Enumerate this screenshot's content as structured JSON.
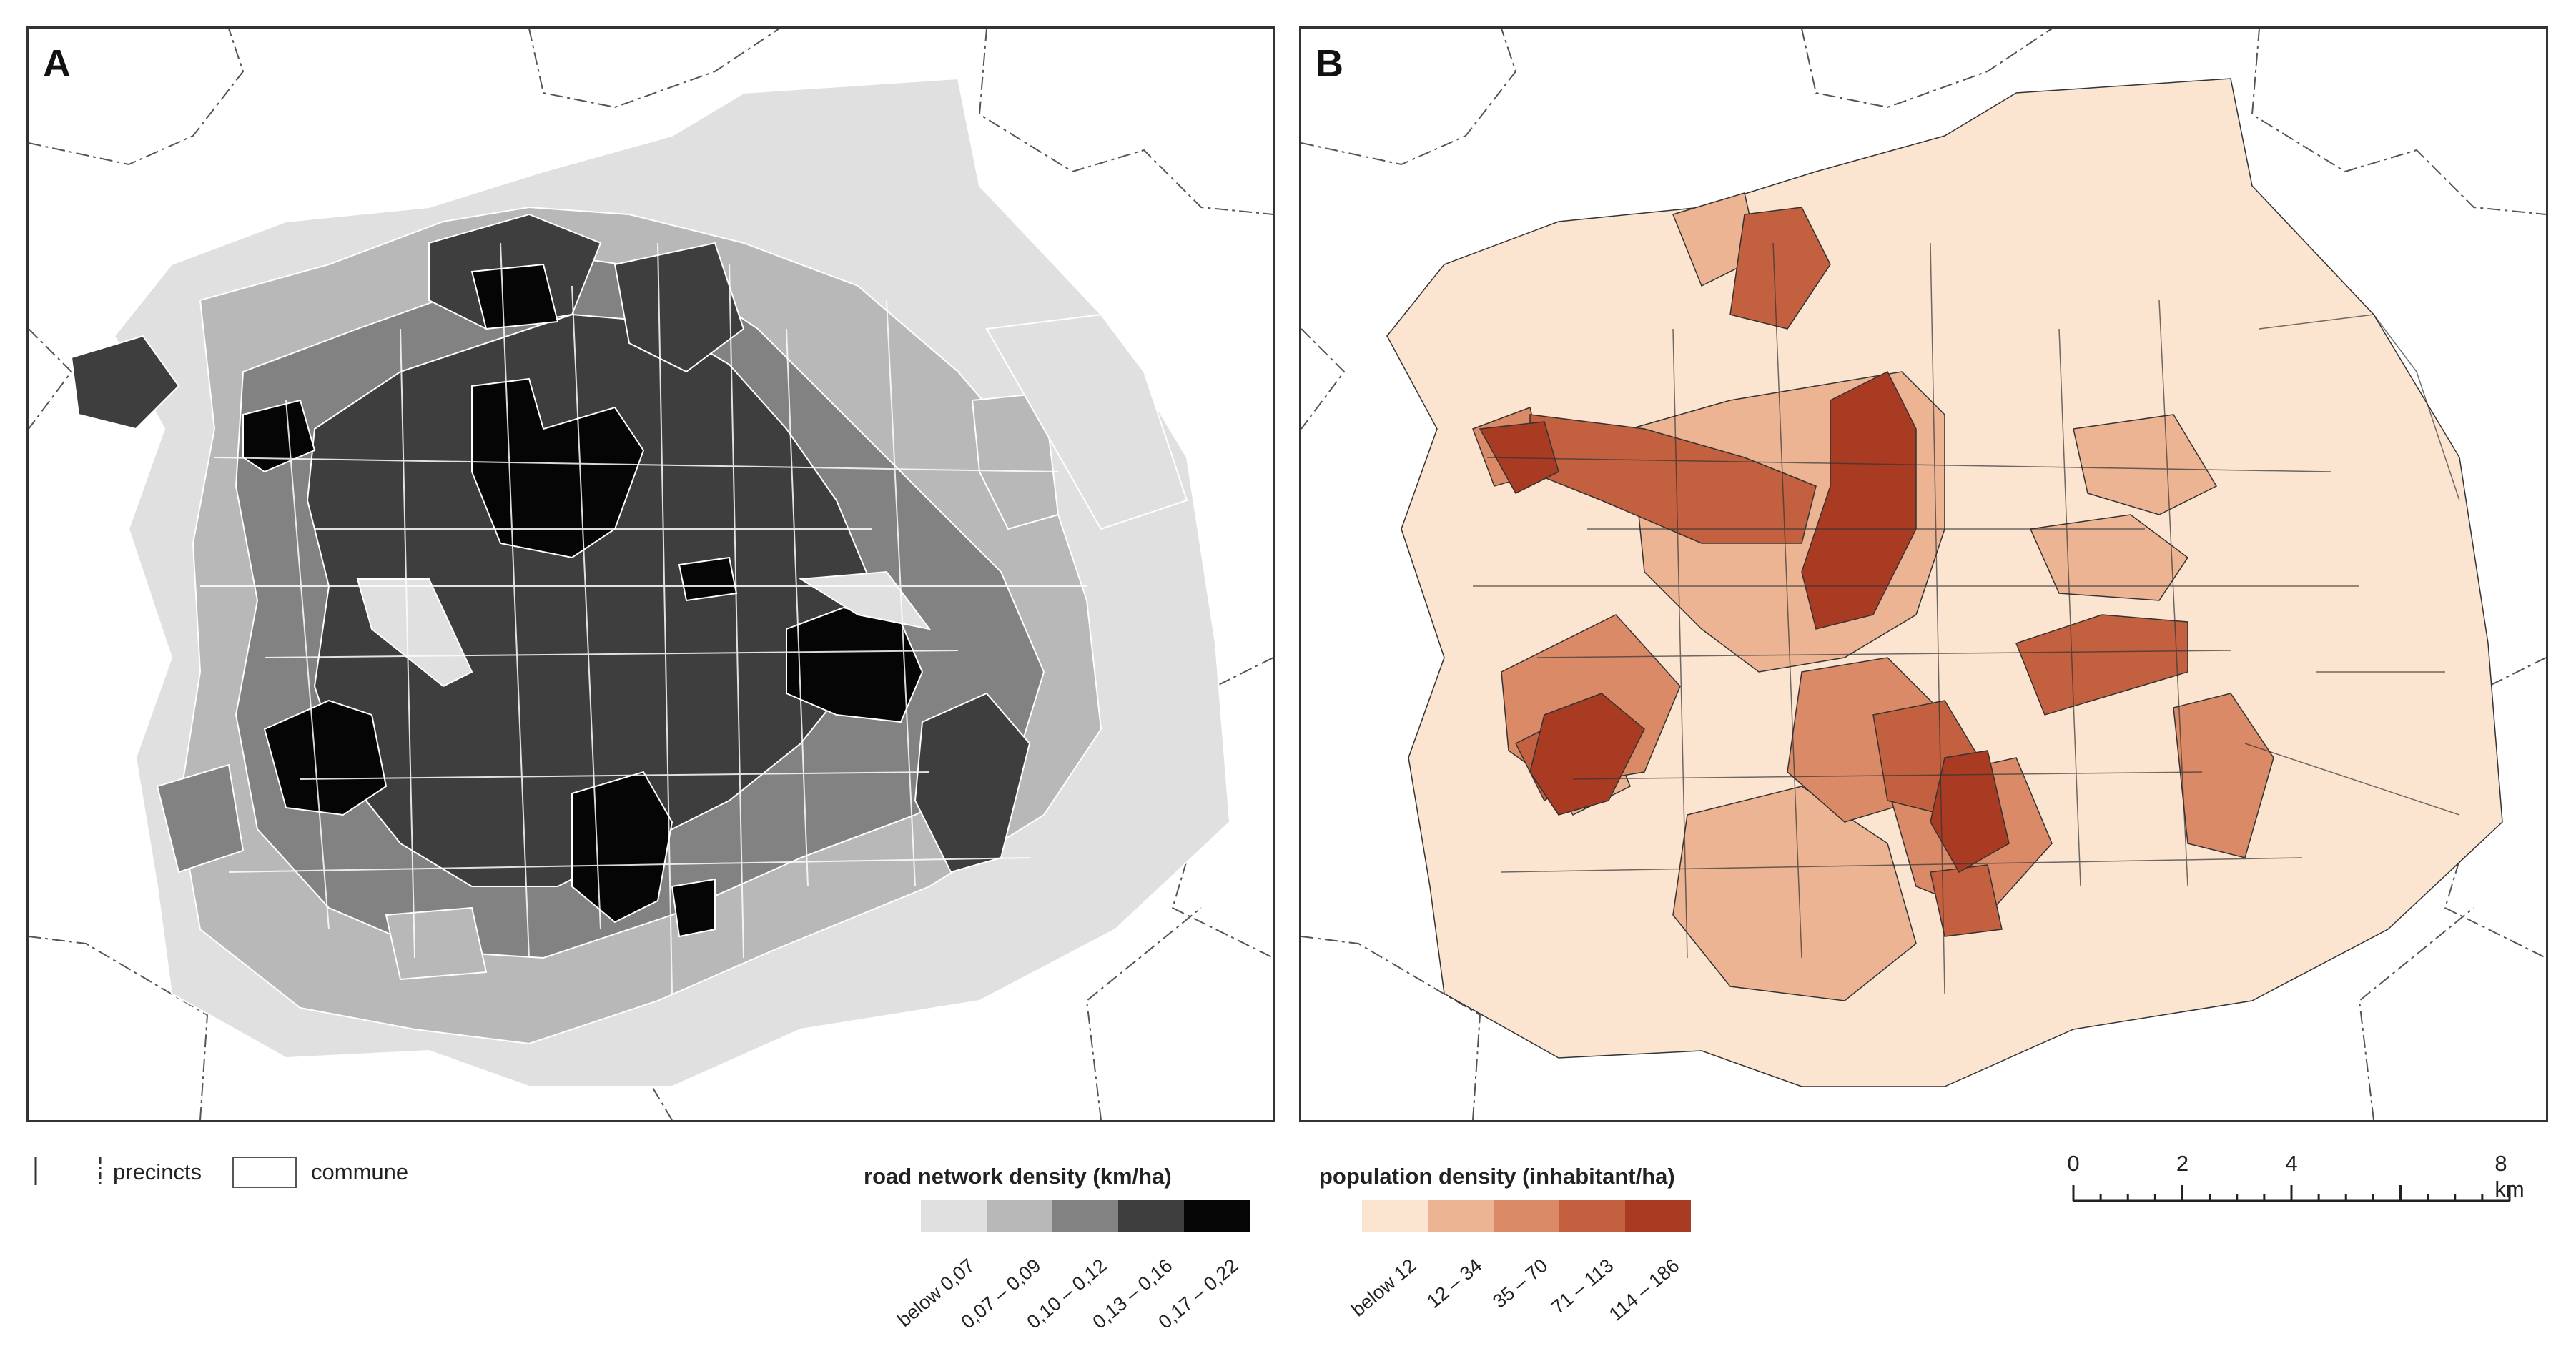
{
  "panels": {
    "a": {
      "letter": "A"
    },
    "b": {
      "letter": "B"
    }
  },
  "legend_lines": {
    "precincts_label": "precincts",
    "commune_label": "commune"
  },
  "road_legend": {
    "title": "road network density (km/ha)",
    "classes": [
      {
        "label": "below 0,07",
        "color": "#e0e0e0"
      },
      {
        "label": "0,07 – 0,09",
        "color": "#b8b8b8"
      },
      {
        "label": "0,10 – 0,12",
        "color": "#828282"
      },
      {
        "label": "0,13 – 0,16",
        "color": "#3e3e3e"
      },
      {
        "label": "0,17 – 0,22",
        "color": "#050505"
      }
    ]
  },
  "pop_legend": {
    "title": "population density (inhabitant/ha)",
    "classes": [
      {
        "label": "below 12",
        "color": "#fbe4d0"
      },
      {
        "label": "12 – 34",
        "color": "#ecb493"
      },
      {
        "label": "35 – 70",
        "color": "#db8a68"
      },
      {
        "label": "71 – 113",
        "color": "#c3603f"
      },
      {
        "label": "114 – 186",
        "color": "#a93b23"
      }
    ]
  },
  "scale": {
    "ticks": [
      {
        "label": "0",
        "km": 0
      },
      {
        "label": "2",
        "km": 2
      },
      {
        "label": "4",
        "km": 4
      }
    ],
    "end_label": "8 km",
    "max_km": 8
  }
}
